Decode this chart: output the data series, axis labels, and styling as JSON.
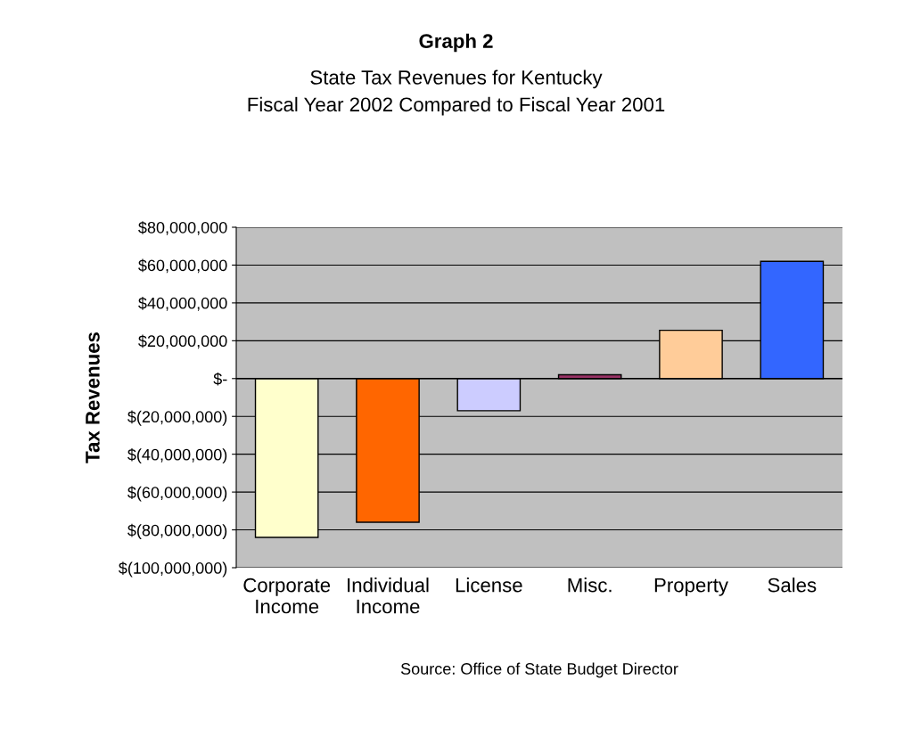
{
  "chart_data": {
    "type": "bar",
    "title": "Graph 2",
    "subtitle": "State Tax Revenues for Kentucky\nFiscal Year 2002 Compared to Fiscal Year 2001",
    "ylabel": "Tax Revenues",
    "categories": [
      "Corporate\nIncome",
      "Individual\nIncome",
      "License",
      "Misc.",
      "Property",
      "Sales"
    ],
    "values": [
      -84000000,
      -76000000,
      -17000000,
      2000000,
      25500000,
      62000000
    ],
    "colors": [
      "#ffffcc",
      "#ff6600",
      "#ccccff",
      "#993366",
      "#ffcc99",
      "#3366ff"
    ],
    "ylim": [
      -100000000,
      80000000
    ],
    "yticks": [
      {
        "value": -100000000,
        "label": "$(100,000,000)"
      },
      {
        "value": -80000000,
        "label": "$(80,000,000)"
      },
      {
        "value": -60000000,
        "label": "$(60,000,000)"
      },
      {
        "value": -40000000,
        "label": "$(40,000,000)"
      },
      {
        "value": -20000000,
        "label": "$(20,000,000)"
      },
      {
        "value": 0,
        "label": "$-"
      },
      {
        "value": 20000000,
        "label": "$20,000,000"
      },
      {
        "value": 40000000,
        "label": "$40,000,000"
      },
      {
        "value": 60000000,
        "label": "$60,000,000"
      },
      {
        "value": 80000000,
        "label": "$80,000,000"
      }
    ],
    "grid": "y",
    "annotations": [
      "Source: Office of State Budget Director"
    ]
  }
}
